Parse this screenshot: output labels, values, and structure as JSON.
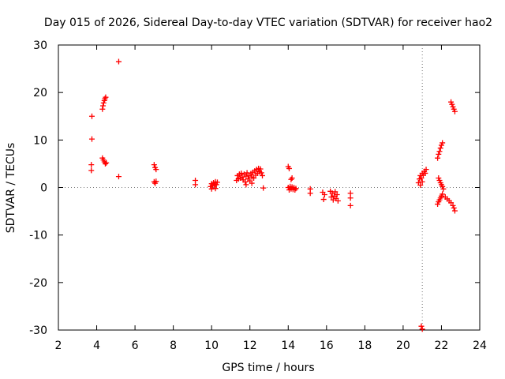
{
  "chart_data": {
    "type": "scatter",
    "title": "Day 015 of 2026, Sidereal Day-to-day VTEC variation (SDTVAR) for receiver hao2",
    "xlabel": "GPS time / hours",
    "ylabel": "SDTVAR / TECUs",
    "xlim": [
      2,
      24
    ],
    "ylim": [
      -30,
      30
    ],
    "xticks": [
      2,
      4,
      6,
      8,
      10,
      12,
      14,
      16,
      18,
      20,
      22,
      24
    ],
    "yticks": [
      -30,
      -20,
      -10,
      0,
      10,
      20,
      30
    ],
    "grid": "dotted zero lines",
    "marker": "+",
    "color": "#ff0000",
    "series": [
      {
        "name": "SDTVAR",
        "points": [
          [
            3.75,
            15.0
          ],
          [
            3.75,
            10.2
          ],
          [
            3.72,
            4.8
          ],
          [
            3.72,
            3.6
          ],
          [
            4.3,
            16.5
          ],
          [
            4.33,
            17.2
          ],
          [
            4.36,
            17.8
          ],
          [
            4.4,
            18.3
          ],
          [
            4.43,
            18.7
          ],
          [
            4.47,
            19.0
          ],
          [
            4.3,
            6.2
          ],
          [
            4.35,
            5.8
          ],
          [
            4.4,
            5.4
          ],
          [
            4.45,
            5.0
          ],
          [
            4.5,
            5.2
          ],
          [
            5.15,
            26.5
          ],
          [
            5.15,
            2.3
          ],
          [
            7.0,
            4.8
          ],
          [
            7.05,
            4.2
          ],
          [
            7.1,
            3.8
          ],
          [
            7.0,
            1.2
          ],
          [
            7.05,
            0.9
          ],
          [
            7.1,
            1.3
          ],
          [
            9.15,
            1.5
          ],
          [
            9.15,
            0.6
          ],
          [
            9.95,
            0.2
          ],
          [
            10.0,
            0.8
          ],
          [
            10.05,
            0.4
          ],
          [
            10.1,
            1.0
          ],
          [
            10.15,
            0.5
          ],
          [
            10.2,
            1.2
          ],
          [
            10.25,
            0.6
          ],
          [
            10.3,
            1.1
          ],
          [
            10.0,
            -0.3
          ],
          [
            10.2,
            -0.2
          ],
          [
            11.3,
            1.5
          ],
          [
            11.35,
            2.5
          ],
          [
            11.4,
            1.8
          ],
          [
            11.45,
            2.8
          ],
          [
            11.5,
            2.0
          ],
          [
            11.55,
            3.0
          ],
          [
            11.6,
            2.2
          ],
          [
            11.65,
            1.6
          ],
          [
            11.7,
            2.8
          ],
          [
            11.75,
            1.2
          ],
          [
            11.8,
            2.4
          ],
          [
            11.85,
            3.1
          ],
          [
            11.9,
            1.8
          ],
          [
            11.95,
            2.5
          ],
          [
            12.0,
            1.4
          ],
          [
            12.05,
            2.9
          ],
          [
            12.1,
            2.2
          ],
          [
            12.15,
            3.2
          ],
          [
            12.2,
            2.0
          ],
          [
            12.25,
            3.5
          ],
          [
            12.3,
            2.6
          ],
          [
            12.35,
            3.8
          ],
          [
            12.4,
            3.0
          ],
          [
            12.45,
            4.0
          ],
          [
            12.5,
            3.3
          ],
          [
            12.55,
            3.9
          ],
          [
            12.6,
            3.1
          ],
          [
            12.65,
            2.5
          ],
          [
            11.8,
            0.6
          ],
          [
            12.1,
            0.9
          ],
          [
            12.7,
            -0.1
          ],
          [
            14.0,
            4.4
          ],
          [
            14.05,
            4.0
          ],
          [
            14.15,
            1.7
          ],
          [
            14.2,
            2.0
          ],
          [
            14.0,
            0.0
          ],
          [
            14.05,
            -0.5
          ],
          [
            14.1,
            0.2
          ],
          [
            14.15,
            -0.3
          ],
          [
            14.2,
            0.1
          ],
          [
            14.25,
            -0.4
          ],
          [
            14.3,
            0.0
          ],
          [
            14.35,
            -0.5
          ],
          [
            14.4,
            -0.2
          ],
          [
            15.15,
            -0.3
          ],
          [
            15.15,
            -1.2
          ],
          [
            15.8,
            -1.0
          ],
          [
            15.85,
            -2.5
          ],
          [
            15.9,
            -1.5
          ],
          [
            16.2,
            -0.8
          ],
          [
            16.25,
            -2.0
          ],
          [
            16.3,
            -1.2
          ],
          [
            16.35,
            -2.6
          ],
          [
            16.4,
            -1.8
          ],
          [
            16.45,
            -0.9
          ],
          [
            16.5,
            -2.3
          ],
          [
            16.55,
            -1.5
          ],
          [
            16.6,
            -2.8
          ],
          [
            17.25,
            -1.2
          ],
          [
            17.25,
            -2.2
          ],
          [
            17.25,
            -3.8
          ],
          [
            20.8,
            1.0
          ],
          [
            20.85,
            1.8
          ],
          [
            20.9,
            2.5
          ],
          [
            20.95,
            2.0
          ],
          [
            21.0,
            3.0
          ],
          [
            21.05,
            2.6
          ],
          [
            21.1,
            3.4
          ],
          [
            21.15,
            3.0
          ],
          [
            21.2,
            3.8
          ],
          [
            20.9,
            0.5
          ],
          [
            21.0,
            1.2
          ],
          [
            20.95,
            -29.2
          ],
          [
            21.0,
            -29.8
          ],
          [
            21.8,
            6.2
          ],
          [
            21.85,
            7.0
          ],
          [
            21.9,
            7.6
          ],
          [
            21.95,
            8.3
          ],
          [
            22.0,
            8.9
          ],
          [
            22.05,
            9.4
          ],
          [
            21.85,
            2.0
          ],
          [
            21.9,
            1.5
          ],
          [
            21.95,
            1.0
          ],
          [
            22.0,
            0.6
          ],
          [
            22.05,
            0.2
          ],
          [
            22.1,
            -0.3
          ],
          [
            21.8,
            -3.5
          ],
          [
            21.85,
            -3.0
          ],
          [
            21.9,
            -2.6
          ],
          [
            21.95,
            -2.2
          ],
          [
            22.0,
            -1.8
          ],
          [
            22.05,
            -1.4
          ],
          [
            22.2,
            -2.0
          ],
          [
            22.3,
            -2.4
          ],
          [
            22.4,
            -2.8
          ],
          [
            22.5,
            -3.2
          ],
          [
            22.6,
            -3.8
          ],
          [
            22.65,
            -4.3
          ],
          [
            22.7,
            -4.9
          ],
          [
            22.5,
            18.0
          ],
          [
            22.55,
            17.5
          ],
          [
            22.6,
            17.0
          ],
          [
            22.65,
            16.5
          ],
          [
            22.7,
            16.0
          ]
        ]
      }
    ]
  }
}
